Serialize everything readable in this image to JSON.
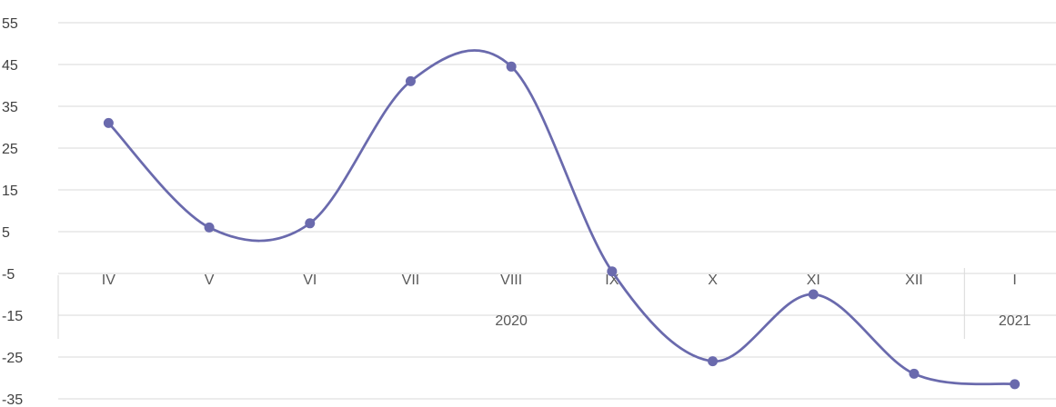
{
  "chart_data": {
    "type": "line",
    "smooth": true,
    "title": "",
    "xlabel": "",
    "ylabel": "",
    "ylim": [
      -35,
      55
    ],
    "y_ticks": [
      "55",
      "45",
      "35",
      "25",
      "15",
      "5",
      "-5",
      "-15",
      "-25",
      "-35"
    ],
    "grid": true,
    "legend": "none",
    "categories": [
      "IV",
      "V",
      "VI",
      "VII",
      "VIII",
      "IX",
      "X",
      "XI",
      "XII",
      "I"
    ],
    "category_groups": [
      {
        "label": "2020",
        "span": 9
      },
      {
        "label": "2021",
        "span": 1
      }
    ],
    "series": [
      {
        "color": "#6a6aad",
        "values": [
          31,
          6,
          7,
          41,
          44.5,
          -4.5,
          -26,
          -10,
          -29,
          -31.5
        ]
      }
    ]
  }
}
